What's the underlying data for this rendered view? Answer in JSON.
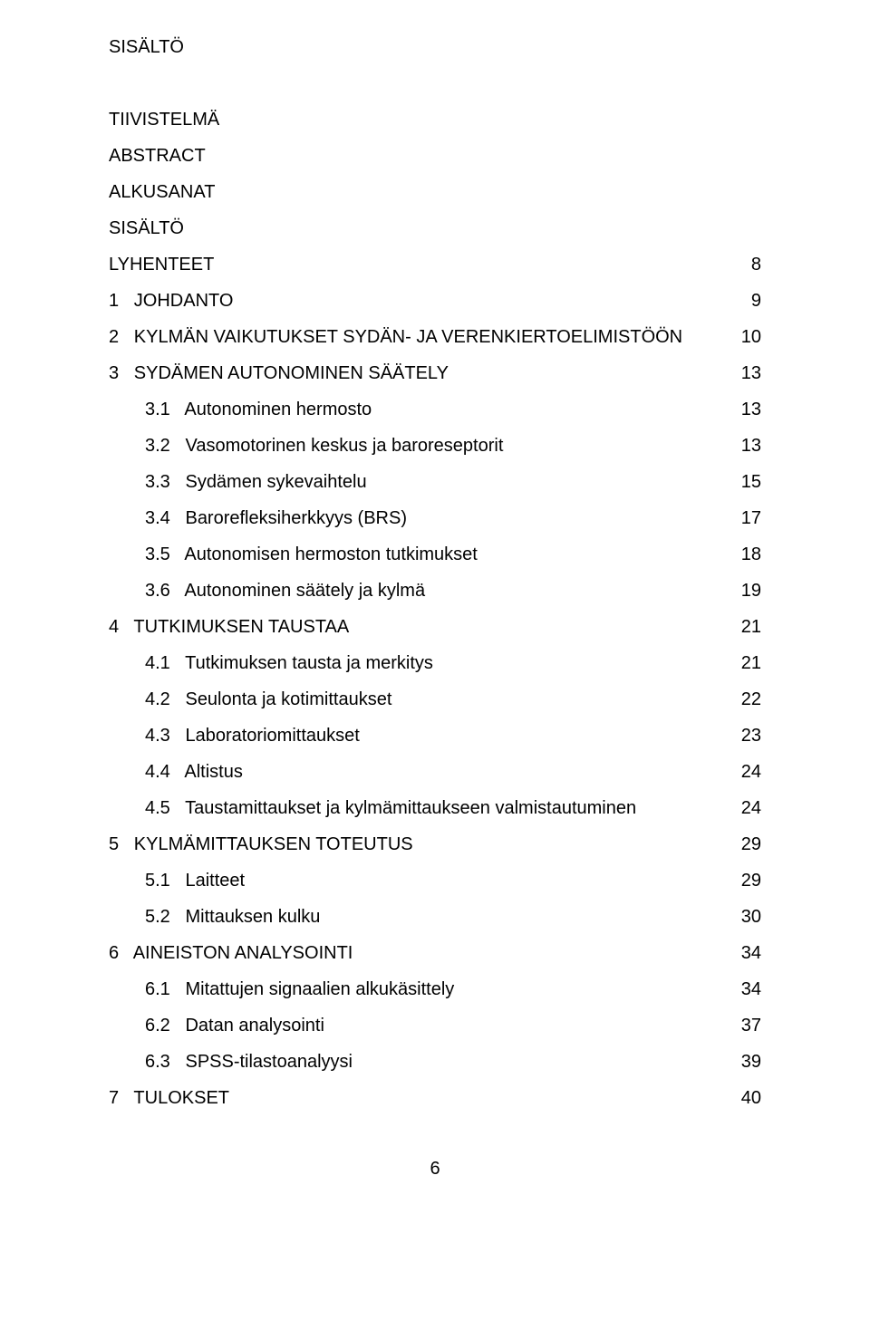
{
  "page_title": "SISÄLTÖ",
  "front_matter": [
    "TIIVISTELMÄ",
    "ABSTRACT",
    "ALKUSANAT",
    "SISÄLTÖ"
  ],
  "lines": [
    {
      "indent": 0,
      "label": "LYHENTEET",
      "page": "8"
    },
    {
      "indent": 0,
      "label": "1   JOHDANTO",
      "page": "9"
    },
    {
      "indent": 0,
      "label": "2   KYLMÄN VAIKUTUKSET SYDÄN- JA VERENKIERTOELIMISTÖÖN",
      "page": "10"
    },
    {
      "indent": 0,
      "label": "3   SYDÄMEN AUTONOMINEN SÄÄTELY",
      "page": "13"
    },
    {
      "indent": 1,
      "label": "3.1   Autonominen hermosto",
      "page": "13"
    },
    {
      "indent": 1,
      "label": "3.2   Vasomotorinen keskus ja baroreseptorit",
      "page": "13"
    },
    {
      "indent": 1,
      "label": "3.3   Sydämen sykevaihtelu",
      "page": "15"
    },
    {
      "indent": 1,
      "label": "3.4   Barorefleksiherkkyys (BRS)",
      "page": "17"
    },
    {
      "indent": 1,
      "label": "3.5   Autonomisen hermoston tutkimukset",
      "page": "18"
    },
    {
      "indent": 1,
      "label": "3.6   Autonominen säätely ja kylmä",
      "page": "19"
    },
    {
      "indent": 0,
      "label": "4   TUTKIMUKSEN TAUSTAA",
      "page": "21"
    },
    {
      "indent": 1,
      "label": "4.1   Tutkimuksen tausta ja merkitys",
      "page": "21"
    },
    {
      "indent": 1,
      "label": "4.2   Seulonta ja kotimittaukset",
      "page": "22"
    },
    {
      "indent": 1,
      "label": "4.3   Laboratoriomittaukset",
      "page": "23"
    },
    {
      "indent": 1,
      "label": "4.4   Altistus",
      "page": "24"
    },
    {
      "indent": 1,
      "label": "4.5   Taustamittaukset ja kylmämittaukseen valmistautuminen",
      "page": "24"
    },
    {
      "indent": 0,
      "label": "5   KYLMÄMITTAUKSEN TOTEUTUS",
      "page": "29"
    },
    {
      "indent": 1,
      "label": "5.1   Laitteet",
      "page": "29"
    },
    {
      "indent": 1,
      "label": "5.2   Mittauksen kulku",
      "page": "30"
    },
    {
      "indent": 0,
      "label": "6   AINEISTON ANALYSOINTI",
      "page": "34"
    },
    {
      "indent": 1,
      "label": "6.1   Mitattujen signaalien alkukäsittely",
      "page": "34"
    },
    {
      "indent": 1,
      "label": "6.2   Datan analysointi",
      "page": "37"
    },
    {
      "indent": 1,
      "label": "6.3   SPSS-tilastoanalyysi",
      "page": "39"
    },
    {
      "indent": 0,
      "label": "7   TULOKSET",
      "page": "40"
    }
  ],
  "footer_page_number": "6",
  "colors": {
    "text": "#000000",
    "background": "#ffffff"
  },
  "fonts": {
    "family": "Arial, Helvetica, sans-serif",
    "size_pt": 20,
    "line_height_ratio": 2.0
  }
}
